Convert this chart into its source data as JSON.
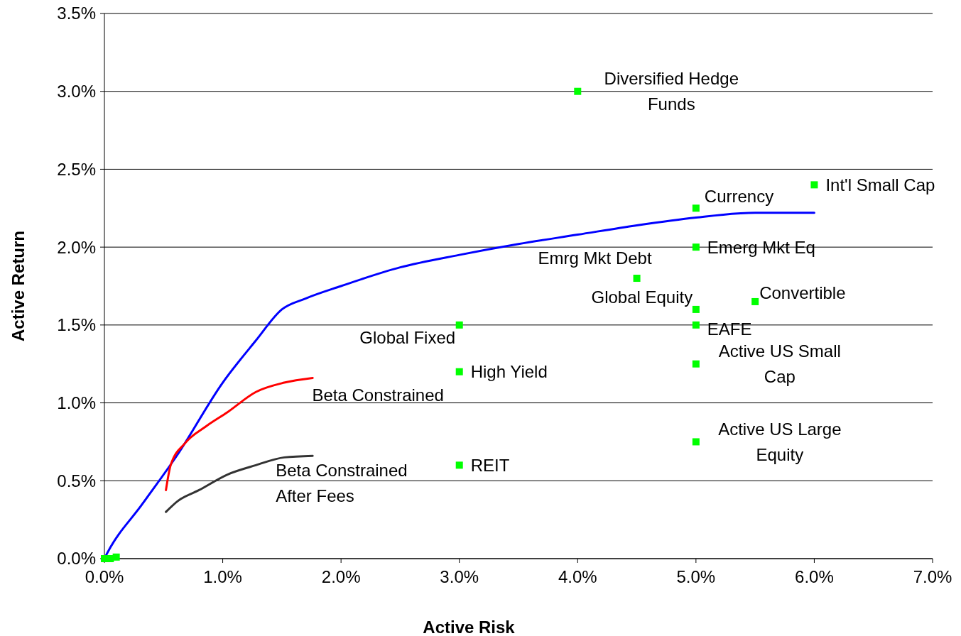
{
  "chart_data": {
    "type": "line",
    "xlabel": "Active Risk",
    "ylabel": "Active Return",
    "xlim": [
      0,
      7
    ],
    "ylim": [
      0,
      3.5
    ],
    "xticks": [
      {
        "value": 0,
        "label": "0.0%"
      },
      {
        "value": 1,
        "label": "1.0%"
      },
      {
        "value": 2,
        "label": "2.0%"
      },
      {
        "value": 3,
        "label": "3.0%"
      },
      {
        "value": 4,
        "label": "4.0%"
      },
      {
        "value": 5,
        "label": "5.0%"
      },
      {
        "value": 6,
        "label": "6.0%"
      },
      {
        "value": 7,
        "label": "7.0%"
      }
    ],
    "yticks": [
      {
        "value": 0,
        "label": "0.0%"
      },
      {
        "value": 0.5,
        "label": "0.5%"
      },
      {
        "value": 1,
        "label": "1.0%"
      },
      {
        "value": 1.5,
        "label": "1.5%"
      },
      {
        "value": 2,
        "label": "2.0%"
      },
      {
        "value": 2.5,
        "label": "2.5%"
      },
      {
        "value": 3,
        "label": "3.0%"
      },
      {
        "value": 3.5,
        "label": "3.5%"
      }
    ],
    "grid": "y",
    "series": [
      {
        "marker": "none",
        "color": "#0000ff",
        "x": [
          0,
          0.02,
          0.32,
          0.62,
          1.0,
          1.28,
          1.5,
          1.7,
          2.0,
          2.5,
          3.0,
          3.5,
          4.0,
          4.5,
          5.0,
          5.5,
          6.0
        ],
        "values": [
          0,
          0.03,
          0.35,
          0.67,
          1.13,
          1.4,
          1.6,
          1.67,
          1.75,
          1.87,
          1.95,
          2.02,
          2.08,
          2.14,
          2.19,
          2.22,
          2.22
        ]
      },
      {
        "marker": "none",
        "color": "#ff0000",
        "x": [
          0.52,
          0.56,
          0.68,
          0.86,
          1.04,
          1.28,
          1.52,
          1.76
        ],
        "values": [
          0.44,
          0.6,
          0.74,
          0.85,
          0.94,
          1.07,
          1.13,
          1.16
        ]
      },
      {
        "marker": "none",
        "color": "#333333",
        "x": [
          0.52,
          0.62,
          0.8,
          1.04,
          1.28,
          1.52,
          1.76
        ],
        "values": [
          0.3,
          0.37,
          0.44,
          0.54,
          0.6,
          0.65,
          0.66
        ]
      },
      {
        "type": "scatter",
        "marker": "square",
        "color": "#00ff00",
        "x": [
          4,
          6,
          5,
          5,
          4.5,
          5,
          5.5,
          5,
          3,
          5,
          3,
          5,
          3,
          0,
          0.05,
          0.1
        ],
        "values": [
          3.0,
          2.4,
          2.25,
          2.0,
          1.8,
          1.6,
          1.65,
          1.5,
          1.5,
          1.25,
          1.2,
          0.75,
          0.6,
          0,
          0,
          0.01
        ]
      }
    ],
    "annotations": [
      {
        "text": "Diversified Hedge Funds",
        "x": 4,
        "y": 3.0
      },
      {
        "text": "Int'l Small Cap",
        "x": 6,
        "y": 2.4
      },
      {
        "text": "Currency",
        "x": 5,
        "y": 2.25
      },
      {
        "text": "Emerg Mkt Eq",
        "x": 5,
        "y": 2.0
      },
      {
        "text": "Emrg Mkt Debt",
        "x": 4.5,
        "y": 1.8
      },
      {
        "text": "Global Equity",
        "x": 5,
        "y": 1.6
      },
      {
        "text": "Convertible",
        "x": 5.5,
        "y": 1.65
      },
      {
        "text": "EAFE",
        "x": 5,
        "y": 1.5
      },
      {
        "text": "Global Fixed",
        "x": 3,
        "y": 1.5
      },
      {
        "text": "Active US Small Cap",
        "x": 5,
        "y": 1.25
      },
      {
        "text": "High Yield",
        "x": 3,
        "y": 1.2
      },
      {
        "text": "Active US Large Equity",
        "x": 5,
        "y": 0.75
      },
      {
        "text": "REIT",
        "x": 3,
        "y": 0.6
      },
      {
        "text": "Beta Constrained",
        "x": 1.76,
        "y": 1.16
      },
      {
        "text": "Beta Constrained After Fees",
        "x": 1.76,
        "y": 0.66
      }
    ]
  }
}
